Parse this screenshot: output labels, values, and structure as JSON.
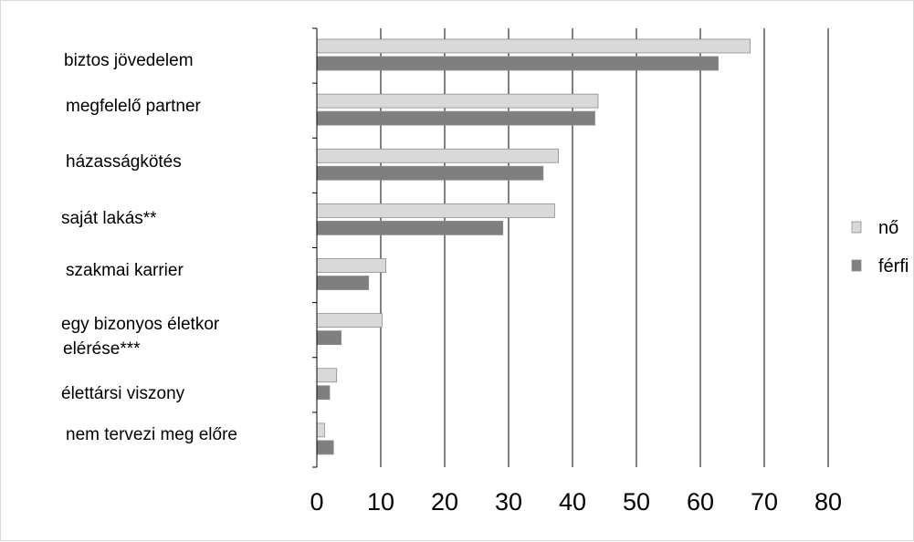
{
  "chart_data": {
    "type": "bar",
    "orientation": "horizontal",
    "categories": [
      [
        "biztos jövedelem"
      ],
      [
        "megfelelő partner"
      ],
      [
        "házasságkötés"
      ],
      [
        "saját lakás**"
      ],
      [
        "szakmai karrier"
      ],
      [
        "egy bizonyos életkor",
        "elérése***"
      ],
      [
        "élettársi viszony"
      ],
      [
        "nem tervezi meg előre"
      ]
    ],
    "series": [
      {
        "name": "nő",
        "color": "#d9d9d9",
        "values": [
          67.8,
          44.0,
          37.8,
          37.2,
          10.8,
          10.2,
          3.1,
          1.2
        ]
      },
      {
        "name": "férfi",
        "color": "#7f7f7f",
        "values": [
          62.8,
          43.5,
          35.4,
          29.1,
          8.1,
          3.8,
          2.0,
          2.6
        ]
      }
    ],
    "xlim": [
      0,
      80
    ],
    "xticks": [
      0,
      10,
      20,
      30,
      40,
      50,
      60,
      70,
      80
    ],
    "grid": true,
    "legend": "right"
  }
}
